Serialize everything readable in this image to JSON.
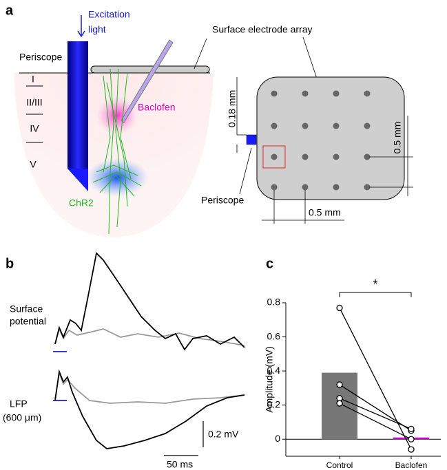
{
  "panel_labels": [
    "a",
    "b",
    "c"
  ],
  "panel_a": {
    "excitation": [
      "Excitation",
      "light"
    ],
    "periscope": "Periscope",
    "layers": [
      "I",
      "II/III",
      "IV",
      "V"
    ],
    "baclofen": "Baclofen",
    "chr2": "ChR2",
    "array_title": "Surface electrode array",
    "dim_small": "0.18 mm",
    "dim_vertical": "0.5 mm",
    "dim_horizontal": "0.5 mm",
    "periscope_label": "Periscope"
  },
  "panel_b": {
    "surface": [
      "Surface",
      "potential"
    ],
    "lfp": [
      "LFP",
      "(600 μm)"
    ],
    "scale_v": "0.2 mV",
    "scale_t": "50 ms"
  },
  "chart_data": {
    "type": "bar",
    "y_label": "Amplitude (mV)",
    "significance": "*",
    "categories": [
      "Control",
      "Baclofen"
    ],
    "values": [
      0.39,
      0.01
    ],
    "colors": [
      "#777777",
      "#cc00cc"
    ],
    "series": [
      {
        "values": [
          0.77,
          -0.06
        ]
      },
      {
        "values": [
          0.32,
          0.05
        ]
      },
      {
        "values": [
          0.24,
          0.06
        ]
      },
      {
        "values": [
          0.21,
          0.0
        ]
      }
    ],
    "ylim": [
      -0.1,
      0.8
    ],
    "yticks": [
      0,
      0.2,
      0.4,
      0.6,
      0.8
    ]
  }
}
